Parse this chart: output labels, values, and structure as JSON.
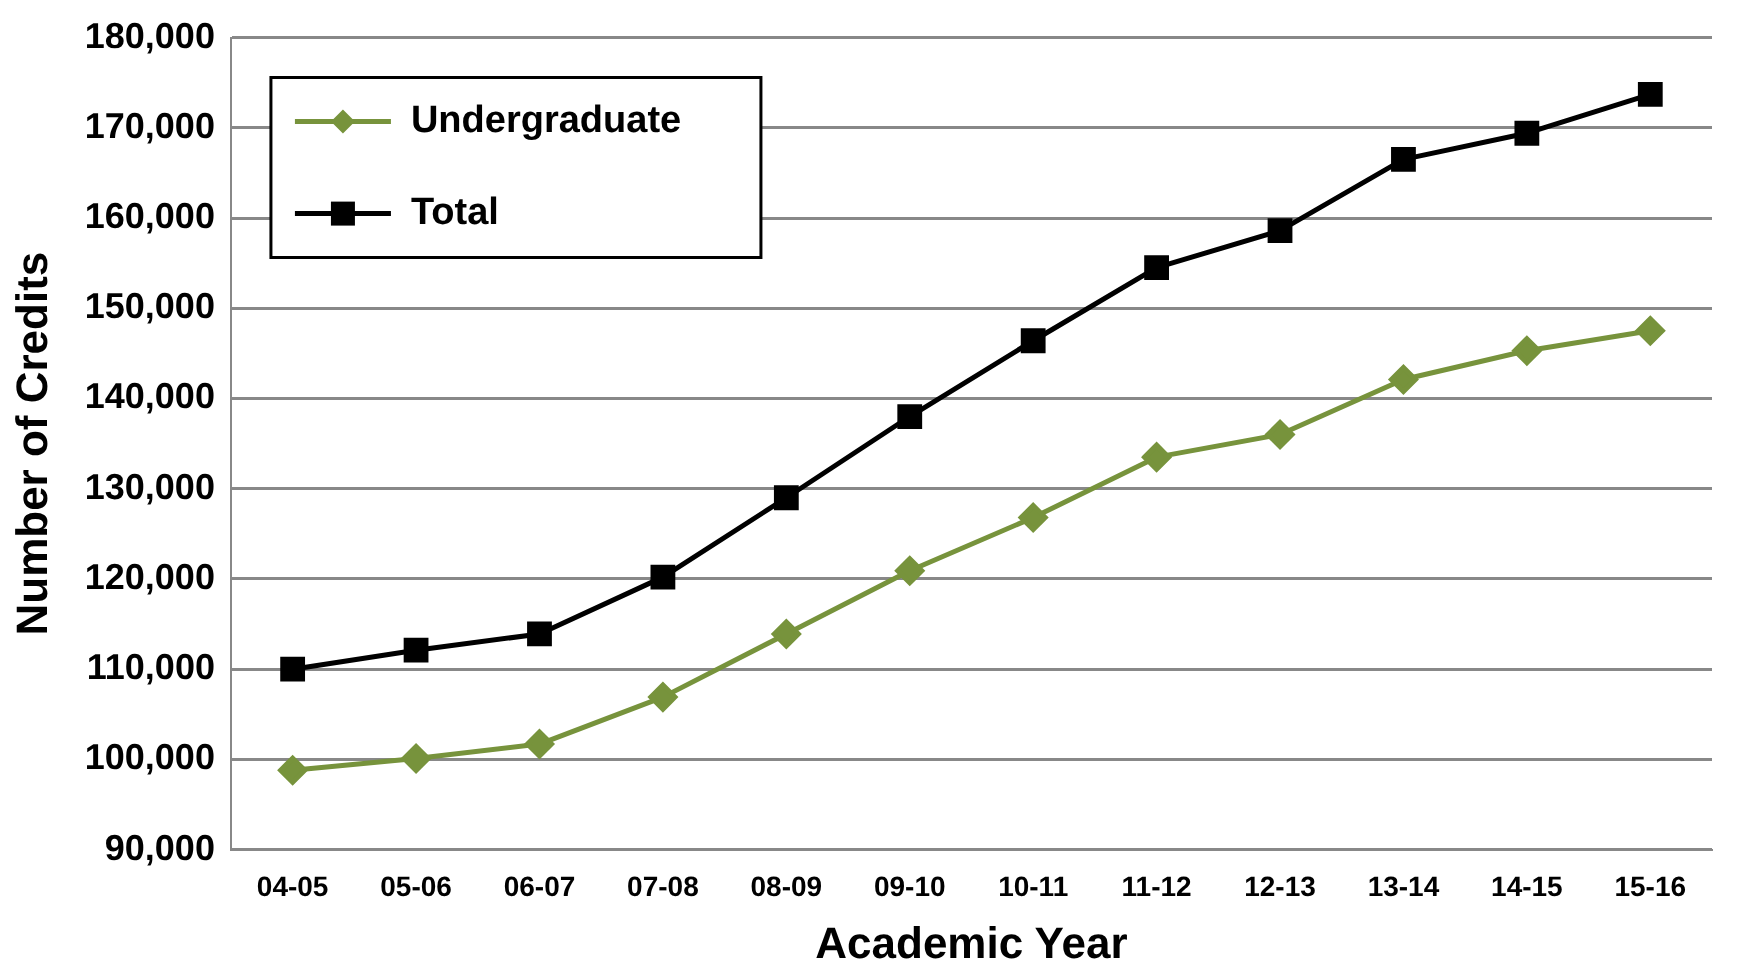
{
  "chart_data": {
    "type": "line",
    "xlabel": "Academic Year",
    "ylabel": "Number of Credits",
    "categories": [
      "04-05",
      "05-06",
      "06-07",
      "07-08",
      "08-09",
      "09-10",
      "10-11",
      "11-12",
      "12-13",
      "13-14",
      "14-15",
      "15-16"
    ],
    "series": [
      {
        "name": "Undergraduate",
        "color": "#77933c",
        "marker": "diamond",
        "values": [
          98800,
          100100,
          101700,
          106900,
          113900,
          120900,
          126800,
          133500,
          136000,
          142100,
          145300,
          147500
        ]
      },
      {
        "name": "Total",
        "color": "#000000",
        "marker": "square",
        "values": [
          110000,
          112100,
          113900,
          120200,
          129000,
          138000,
          146400,
          154500,
          158600,
          166500,
          169400,
          173700
        ]
      }
    ],
    "ylim": [
      90000,
      180000
    ],
    "yticks": [
      {
        "value": 90000,
        "label": "90,000"
      },
      {
        "value": 100000,
        "label": "100,000"
      },
      {
        "value": 110000,
        "label": "110,000"
      },
      {
        "value": 120000,
        "label": "120,000"
      },
      {
        "value": 130000,
        "label": "130,000"
      },
      {
        "value": 140000,
        "label": "140,000"
      },
      {
        "value": 150000,
        "label": "150,000"
      },
      {
        "value": 160000,
        "label": "160,000"
      },
      {
        "value": 170000,
        "label": "170,000"
      },
      {
        "value": 180000,
        "label": "180,000"
      }
    ],
    "grid": "y",
    "legend": "top left"
  }
}
